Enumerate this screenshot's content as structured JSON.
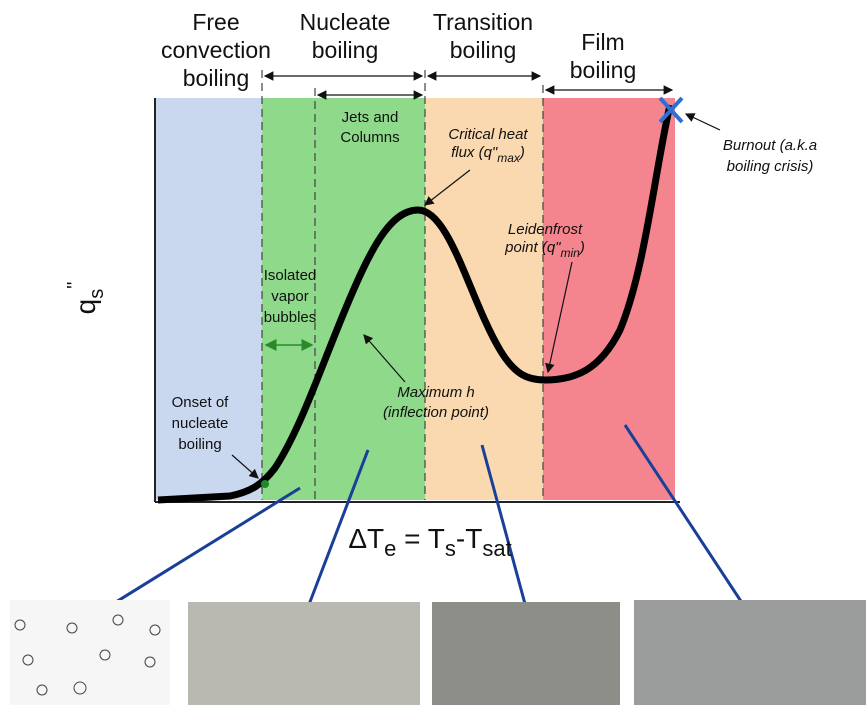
{
  "header": {
    "free_convection": [
      "Free",
      "convection",
      "boiling"
    ],
    "nucleate": [
      "Nucleate",
      "boiling"
    ],
    "transition": [
      "Transition",
      "boiling"
    ],
    "film": [
      "Film",
      "boiling"
    ]
  },
  "annotations": {
    "jets": [
      "Jets and",
      "Columns"
    ],
    "critical_heat_flux": {
      "line": "Critical heat",
      "prefix": "flux (q\"",
      "sub": "max",
      "suffix": ")"
    },
    "burnout": [
      "Burnout (a.k.a",
      "boiling crisis)"
    ],
    "leidenfrost": {
      "line": "Leidenfrost",
      "prefix": "point (q\"",
      "sub": "min",
      "suffix": ")"
    },
    "isolated": [
      "Isolated",
      "vapor",
      "bubbles"
    ],
    "onset": [
      "Onset of",
      "nucleate",
      "boiling"
    ],
    "maximum_h": [
      "Maximum h",
      "(inflection point)"
    ]
  },
  "axes": {
    "y_label": {
      "main": "q",
      "sub": "s",
      "sup": "\""
    },
    "x_label": {
      "a": "ΔT",
      "a_sub": "e",
      "b": " = T",
      "b_sub": "s",
      "c": "-T",
      "c_sub": "sat"
    }
  }
}
